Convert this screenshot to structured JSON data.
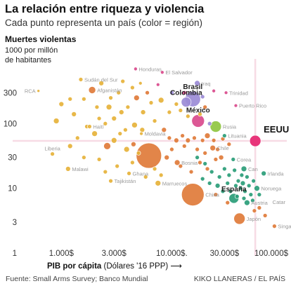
{
  "header": {
    "title": "La relación entre riqueza y violencia",
    "subtitle": "Cada punto representa un país (color = región)"
  },
  "footer": {
    "source": "Fuente: Small Arms Survey; Banco Mundial",
    "credit": "KIKO LLANERAS / EL PAÍS"
  },
  "colors": {
    "africa": "#e6b23a",
    "asia": "#e07b39",
    "europe": "#2a9d78",
    "americas": "#8fc640",
    "middle_east": "#9b8bd6",
    "latam_extreme": "#d94a8c",
    "usa": "#e8357a",
    "highlight_line": "#f7dbe5"
  },
  "chart_data": {
    "type": "scatter",
    "title": "La relación entre riqueza y violencia",
    "subtitle": "Cada punto representa un país (color = región)",
    "ylabel": "Muertes violentas",
    "ylabel_sub": [
      "1000 por millón",
      "de habitantes"
    ],
    "xlabel_bold": "PIB por cápita",
    "xlabel_rest": " (Dólares '16 PPP) ⟶",
    "x_scale": "log",
    "y_scale": "log",
    "xlim": [
      500,
      110000
    ],
    "ylim": [
      1,
      1000
    ],
    "grid": false,
    "x_ticks": [
      {
        "value": 1000,
        "label": "1.000$"
      },
      {
        "value": 3000,
        "label": "3.000$"
      },
      {
        "value": 10000,
        "label": "10.000$."
      },
      {
        "value": 30000,
        "label": "30.000$"
      },
      {
        "value": 100000,
        "label": "100.000$"
      }
    ],
    "y_ticks": [
      {
        "value": 1,
        "label": "1"
      },
      {
        "value": 3,
        "label": "3"
      },
      {
        "value": 10,
        "label": "10"
      },
      {
        "value": 30,
        "label": "30"
      },
      {
        "value": 100,
        "label": "100"
      },
      {
        "value": 300,
        "label": "300"
      }
    ],
    "highlight": {
      "x": 57000,
      "y": 54
    },
    "points": [
      {
        "name": "Honduras",
        "x": 4700,
        "y": 700,
        "size": 2.5,
        "color": "latam_extreme",
        "label": "gray"
      },
      {
        "name": "El Salvador",
        "x": 8200,
        "y": 620,
        "size": 2.5,
        "color": "latam_extreme",
        "label": "gray"
      },
      {
        "name": "RCA",
        "x": 620,
        "y": 320,
        "size": 2,
        "color": "africa",
        "label": "gray"
      },
      {
        "name": "Afganistán",
        "x": 1900,
        "y": 330,
        "size": 5,
        "color": "asia",
        "label": "gray"
      },
      {
        "name": "Sudán del Sur",
        "x": 1500,
        "y": 480,
        "size": 3,
        "color": "africa",
        "label": "gray"
      },
      {
        "name": "Iraq",
        "x": 17000,
        "y": 420,
        "size": 4,
        "color": "middle_east",
        "label": "gray"
      },
      {
        "name": "Trinidad",
        "x": 31000,
        "y": 300,
        "size": 2.5,
        "color": "latam_extreme",
        "label": "gray"
      },
      {
        "name": "Puerto Rico",
        "x": 38000,
        "y": 190,
        "size": 2.5,
        "color": "latam_extreme",
        "label": "gray"
      },
      {
        "name": "Colombia",
        "x": 13500,
        "y": 215,
        "size": 7,
        "color": "middle_east",
        "label": "bold"
      },
      {
        "name": "Brasil",
        "x": 15500,
        "y": 240,
        "size": 11,
        "color": "middle_east",
        "label": "bold"
      },
      {
        "name": "México",
        "x": 17300,
        "y": 110,
        "size": 9,
        "color": "latam_extreme",
        "label": "bold"
      },
      {
        "name": "Haití",
        "x": 1800,
        "y": 90,
        "size": 3,
        "color": "africa",
        "label": "gray"
      },
      {
        "name": "Moldavia",
        "x": 5300,
        "y": 70,
        "size": 2.5,
        "color": "africa",
        "label": "gray"
      },
      {
        "name": "Rusia",
        "x": 25000,
        "y": 90,
        "size": 8,
        "color": "americas",
        "label": "gray"
      },
      {
        "name": "Lituania",
        "x": 30000,
        "y": 65,
        "size": 3,
        "color": "europe",
        "label": "gray"
      },
      {
        "name": "EEUU",
        "x": 57000,
        "y": 54,
        "size": 8,
        "color": "usa",
        "label": "big"
      },
      {
        "name": "Chile",
        "x": 23500,
        "y": 42,
        "size": 4,
        "color": "asia",
        "label": "gray"
      },
      {
        "name": "Liberia",
        "x": 830,
        "y": 34,
        "size": 3,
        "color": "africa",
        "label": "gray"
      },
      {
        "name": "Malawi",
        "x": 1150,
        "y": 20,
        "size": 3.5,
        "color": "africa",
        "label": "gray"
      },
      {
        "name": "Corea",
        "x": 36000,
        "y": 28,
        "size": 3,
        "color": "europe",
        "label": "gray"
      },
      {
        "name": "Bosnia",
        "x": 11200,
        "y": 25,
        "size": 4,
        "color": "asia",
        "label": "gray"
      },
      {
        "name": "Ghana",
        "x": 4100,
        "y": 17,
        "size": 3,
        "color": "africa",
        "label": "gray"
      },
      {
        "name": "Tajikistán",
        "x": 2800,
        "y": 13,
        "size": 3,
        "color": "africa",
        "label": "gray"
      },
      {
        "name": "Marruecos",
        "x": 7500,
        "y": 12,
        "size": 4,
        "color": "africa",
        "label": "gray"
      },
      {
        "name": "Irlanda",
        "x": 68000,
        "y": 17,
        "size": 3.5,
        "color": "europe",
        "label": "gray"
      },
      {
        "name": "Noruega",
        "x": 59000,
        "y": 10,
        "size": 4,
        "color": "europe",
        "label": "gray"
      },
      {
        "name": "España",
        "x": 36500,
        "y": 7,
        "size": 7,
        "color": "europe",
        "label": "bold"
      },
      {
        "name": "China",
        "x": 15500,
        "y": 8,
        "size": 16,
        "color": "asia",
        "label": "gray"
      },
      {
        "name": "Austria",
        "x": 48000,
        "y": 6,
        "size": 4,
        "color": "europe",
        "label": "gray"
      },
      {
        "name": "Catar",
        "x": 125000,
        "y": 6,
        "size": 3,
        "color": "asia",
        "label": "gray"
      },
      {
        "name": "Japón",
        "x": 41000,
        "y": 3.4,
        "size": 8,
        "color": "asia",
        "label": "gray"
      },
      {
        "name": "Singapur",
        "x": 85000,
        "y": 2.6,
        "size": 3,
        "color": "asia",
        "label": "gray"
      },
      {
        "name": "Can",
        "x": 45000,
        "y": 20,
        "size": 4,
        "color": "europe",
        "label": "gray"
      },
      {
        "name": "India-big",
        "x": 6200,
        "y": 32,
        "size": 18,
        "color": "asia",
        "label": "none"
      }
    ],
    "extra_points": [
      [
        3000,
        55,
        4,
        "africa"
      ],
      [
        3400,
        70,
        3,
        "africa"
      ],
      [
        2600,
        45,
        5,
        "asia"
      ],
      [
        3900,
        40,
        4,
        "africa"
      ],
      [
        4500,
        48,
        3.5,
        "asia"
      ],
      [
        5000,
        35,
        3,
        "africa"
      ],
      [
        2200,
        28,
        3,
        "africa"
      ],
      [
        1600,
        30,
        3,
        "africa"
      ],
      [
        1200,
        45,
        3.5,
        "africa"
      ],
      [
        1400,
        60,
        3,
        "africa"
      ],
      [
        2000,
        70,
        4,
        "africa"
      ],
      [
        2500,
        100,
        3,
        "africa"
      ],
      [
        3000,
        120,
        3.5,
        "africa"
      ],
      [
        3500,
        150,
        3.5,
        "africa"
      ],
      [
        4000,
        180,
        3,
        "africa"
      ],
      [
        5500,
        150,
        3.5,
        "africa"
      ],
      [
        6500,
        210,
        3,
        "africa"
      ],
      [
        4800,
        250,
        4,
        "asia"
      ],
      [
        6000,
        300,
        3,
        "asia"
      ],
      [
        8000,
        230,
        4,
        "africa"
      ],
      [
        1000,
        200,
        3.5,
        "africa"
      ],
      [
        1200,
        240,
        3,
        "africa"
      ],
      [
        1600,
        240,
        3,
        "africa"
      ],
      [
        2100,
        180,
        3,
        "africa"
      ],
      [
        2800,
        250,
        3,
        "africa"
      ],
      [
        3300,
        300,
        3,
        "africa"
      ],
      [
        2300,
        420,
        3.5,
        "africa"
      ],
      [
        3600,
        450,
        3,
        "africa"
      ],
      [
        4400,
        360,
        3,
        "africa"
      ],
      [
        5200,
        420,
        2.5,
        "africa"
      ],
      [
        900,
        110,
        4,
        "africa"
      ],
      [
        1300,
        140,
        3.5,
        "africa"
      ],
      [
        1700,
        90,
        3,
        "africa"
      ],
      [
        2200,
        120,
        3,
        "africa"
      ],
      [
        2700,
        180,
        4,
        "africa"
      ],
      [
        3800,
        80,
        3,
        "africa"
      ],
      [
        4600,
        95,
        4,
        "africa"
      ],
      [
        5400,
        80,
        3.5,
        "africa"
      ],
      [
        7000,
        110,
        3,
        "africa"
      ],
      [
        8500,
        80,
        3.5,
        "asia"
      ],
      [
        9500,
        60,
        3,
        "asia"
      ],
      [
        11000,
        55,
        3.5,
        "asia"
      ],
      [
        12500,
        65,
        3,
        "asia"
      ],
      [
        14000,
        55,
        3.5,
        "asia"
      ],
      [
        16000,
        60,
        3,
        "asia"
      ],
      [
        19000,
        55,
        3,
        "asia"
      ],
      [
        21000,
        65,
        4,
        "asia"
      ],
      [
        24000,
        55,
        3,
        "asia"
      ],
      [
        13000,
        45,
        3,
        "asia"
      ],
      [
        17000,
        40,
        3,
        "asia"
      ],
      [
        20000,
        35,
        3,
        "asia"
      ],
      [
        10000,
        40,
        3,
        "asia"
      ],
      [
        9000,
        30,
        3.5,
        "asia"
      ],
      [
        12000,
        22,
        3,
        "asia"
      ],
      [
        15000,
        18,
        3,
        "asia"
      ],
      [
        18000,
        25,
        3,
        "asia"
      ],
      [
        21000,
        20,
        3,
        "asia"
      ],
      [
        25000,
        28,
        3,
        "asia"
      ],
      [
        28000,
        30,
        3.5,
        "asia"
      ],
      [
        7000,
        20,
        3,
        "africa"
      ],
      [
        5800,
        15,
        3,
        "africa"
      ],
      [
        8000,
        16,
        3,
        "africa"
      ],
      [
        3200,
        22,
        3,
        "africa"
      ],
      [
        4400,
        25,
        3,
        "africa"
      ],
      [
        2500,
        18,
        3,
        "africa"
      ],
      [
        19000,
        14,
        3,
        "europe"
      ],
      [
        22000,
        12,
        3,
        "europe"
      ],
      [
        26000,
        11,
        3.5,
        "europe"
      ],
      [
        29000,
        9,
        3,
        "europe"
      ],
      [
        32000,
        12,
        3,
        "europe"
      ],
      [
        34000,
        9,
        3,
        "europe"
      ],
      [
        38000,
        11,
        3,
        "europe"
      ],
      [
        40000,
        13,
        3,
        "europe"
      ],
      [
        42000,
        10,
        3,
        "europe"
      ],
      [
        44000,
        12,
        3.5,
        "europe"
      ],
      [
        46000,
        9,
        3,
        "europe"
      ],
      [
        50000,
        11,
        3,
        "europe"
      ],
      [
        52000,
        8,
        3,
        "europe"
      ],
      [
        55000,
        13,
        3,
        "europe"
      ],
      [
        33000,
        16,
        3,
        "europe"
      ],
      [
        27000,
        15,
        3,
        "europe"
      ],
      [
        39000,
        7.5,
        3,
        "europe"
      ],
      [
        45000,
        7,
        3,
        "europe"
      ],
      [
        54000,
        6.5,
        3,
        "europe"
      ],
      [
        62000,
        8,
        3,
        "europe"
      ],
      [
        48000,
        15,
        3,
        "europe"
      ],
      [
        30000,
        20,
        3,
        "europe"
      ],
      [
        37000,
        19,
        3,
        "europe"
      ],
      [
        43000,
        16,
        3,
        "europe"
      ],
      [
        56000,
        4.5,
        3,
        "asia"
      ],
      [
        62000,
        5,
        3,
        "asia"
      ],
      [
        70000,
        3.8,
        3,
        "asia"
      ],
      [
        32000,
        6,
        3,
        "asia"
      ],
      [
        25000,
        8,
        3,
        "asia"
      ],
      [
        23000,
        18,
        3,
        "europe"
      ],
      [
        17000,
        30,
        3,
        "europe"
      ],
      [
        20000,
        24,
        3,
        "europe"
      ],
      [
        26000,
        40,
        3,
        "asia"
      ],
      [
        29000,
        58,
        3,
        "asia"
      ],
      [
        33000,
        48,
        3,
        "asia"
      ],
      [
        22000,
        100,
        3,
        "middle_east"
      ],
      [
        18000,
        140,
        3,
        "africa"
      ],
      [
        20000,
        180,
        3,
        "asia"
      ],
      [
        12000,
        160,
        3,
        "africa"
      ],
      [
        14000,
        130,
        3,
        "africa"
      ],
      [
        9500,
        150,
        3,
        "africa"
      ],
      [
        11000,
        200,
        3,
        "africa"
      ],
      [
        10000,
        300,
        3,
        "middle_east"
      ],
      [
        7500,
        400,
        2.5,
        "latam_extreme"
      ],
      [
        13000,
        300,
        3,
        "latam_extreme"
      ],
      [
        19000,
        260,
        3,
        "middle_east"
      ],
      [
        24000,
        320,
        2.5,
        "latam_extreme"
      ]
    ]
  }
}
